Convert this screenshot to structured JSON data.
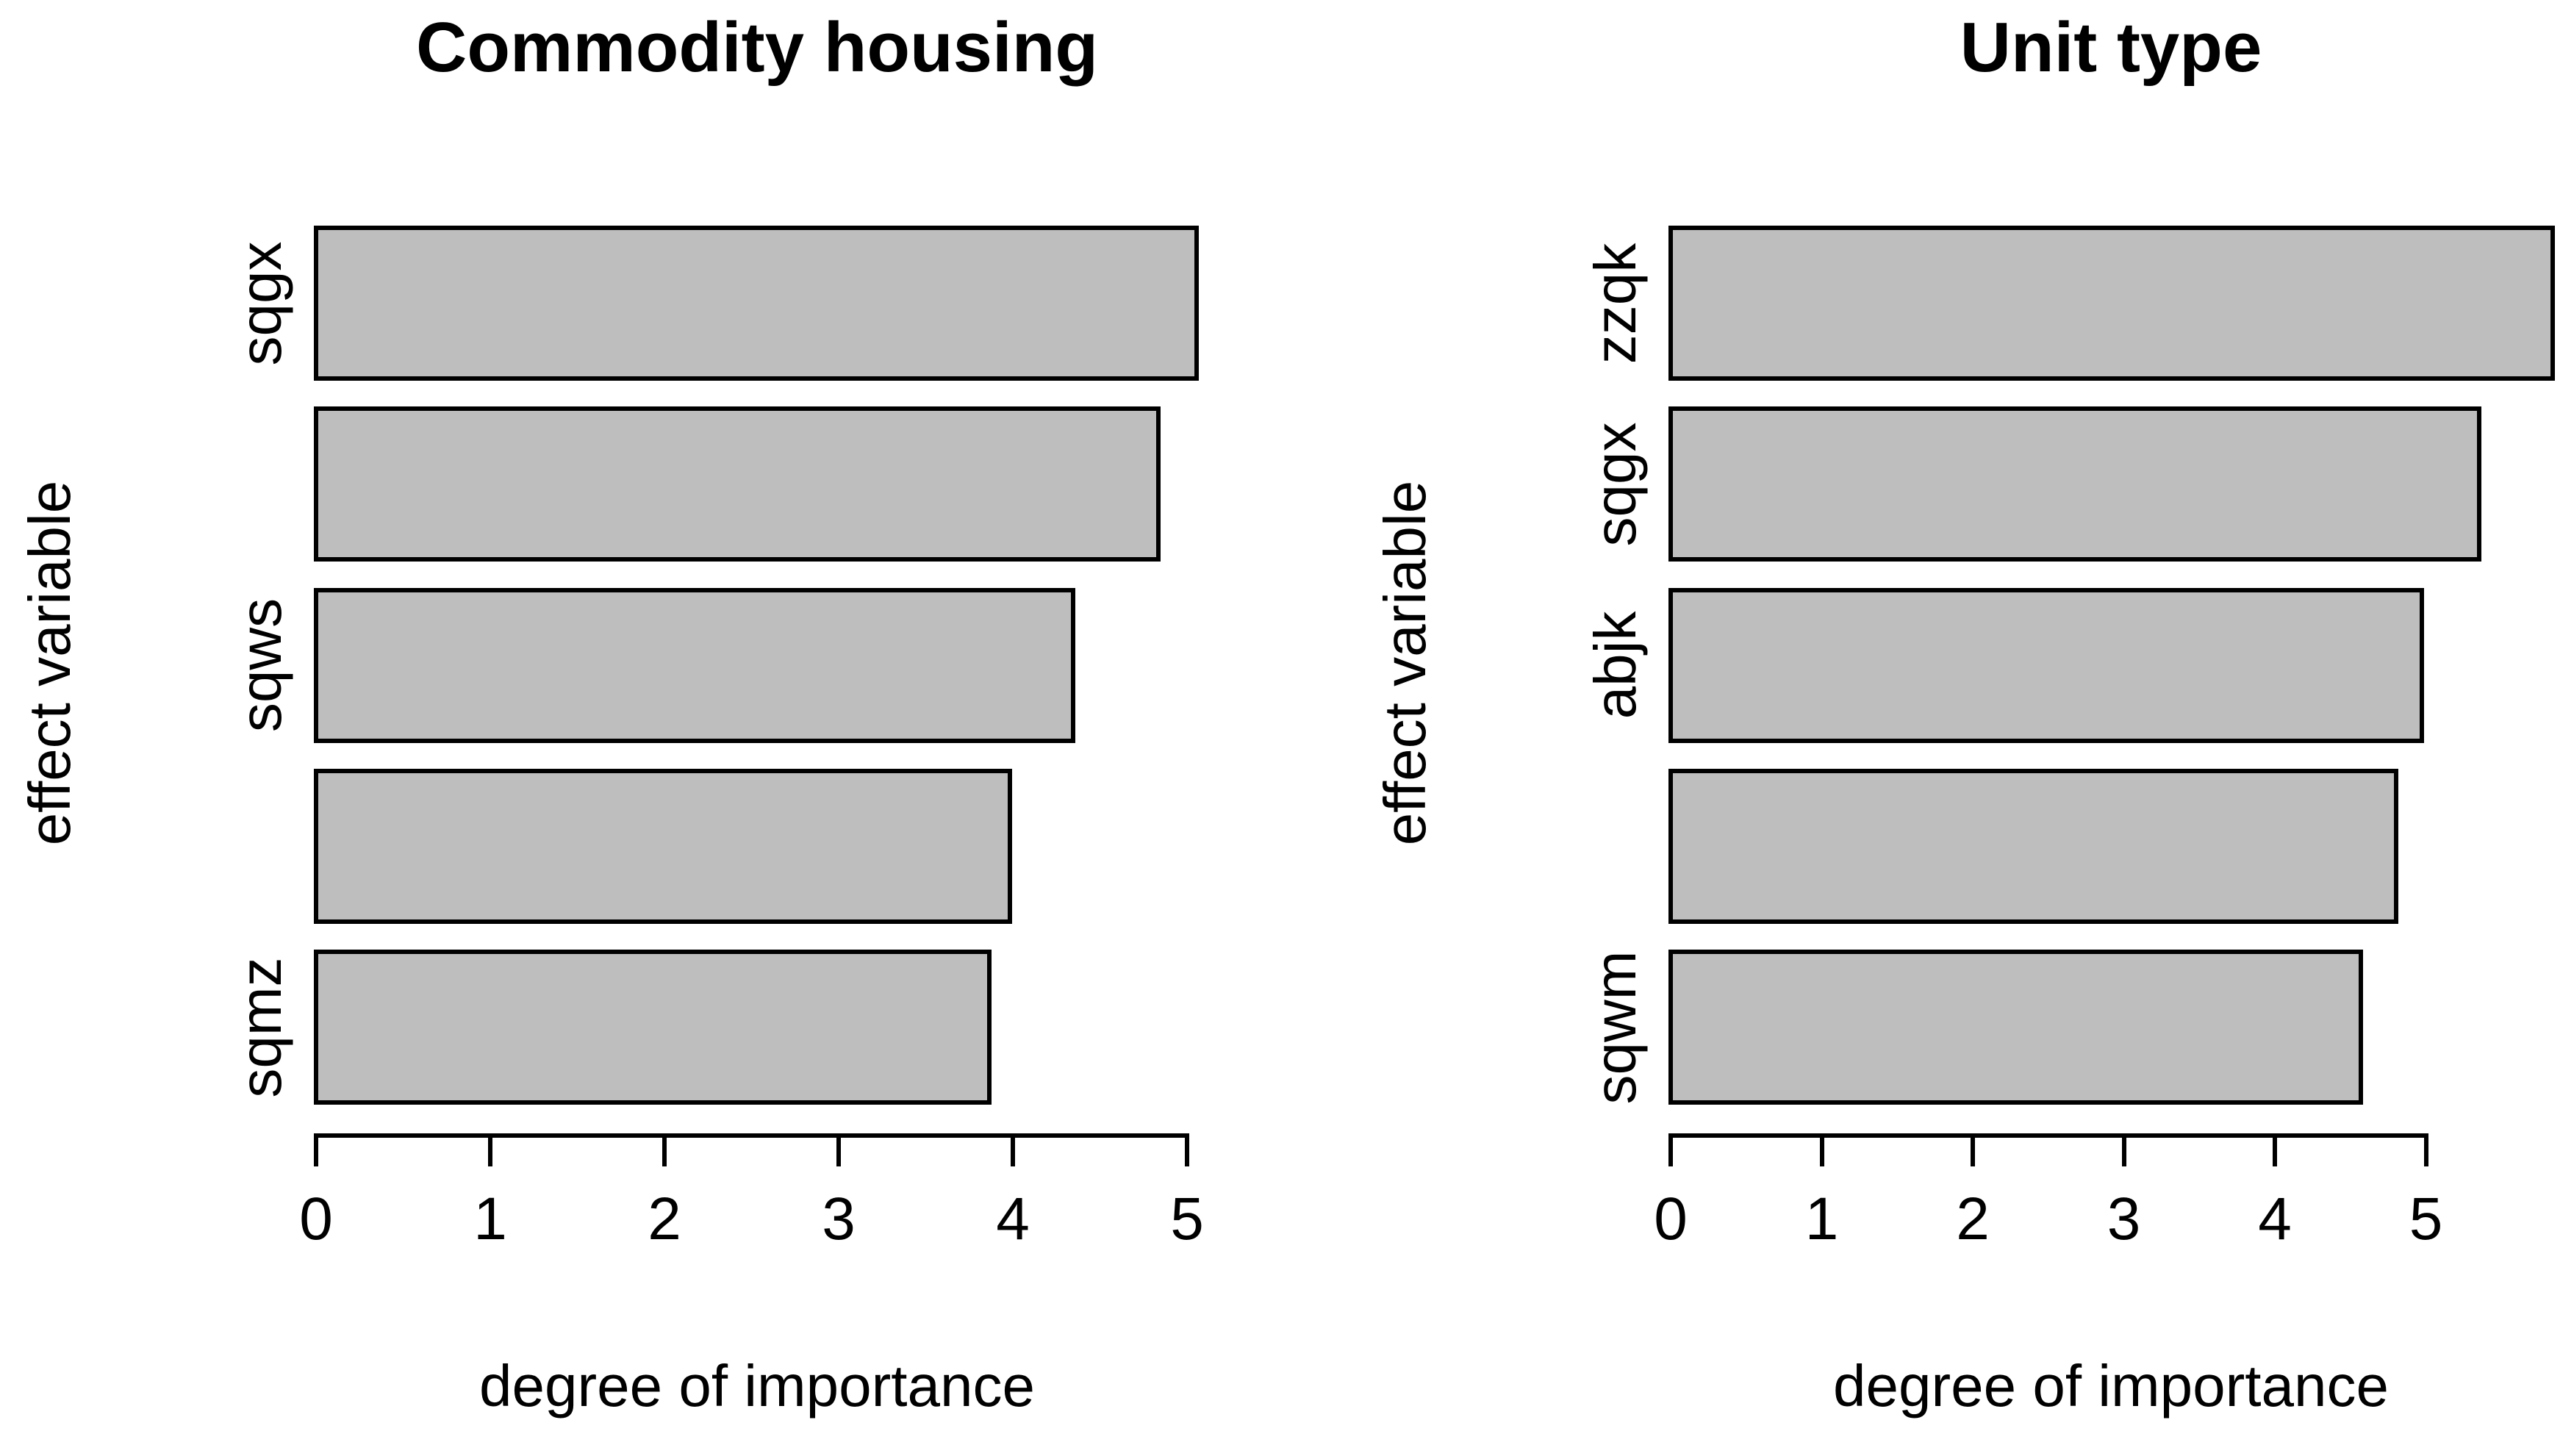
{
  "figure": {
    "background_color": "#ffffff",
    "bar_fill_color": "#bebebe",
    "bar_border_color": "#000000",
    "text_color": "#000000"
  },
  "chart_data": [
    {
      "type": "bar",
      "orientation": "horizontal",
      "title": "Commodity housing",
      "xlabel": "degree of importance",
      "ylabel": "effect variable",
      "categories": [
        "sqgx",
        "",
        "sqws",
        "",
        "sqmz"
      ],
      "values": [
        5.08,
        4.86,
        4.37,
        4.01,
        3.89
      ],
      "xticks": [
        0,
        1,
        2,
        3,
        4,
        5
      ],
      "xlim": [
        0,
        5.08
      ],
      "grid": false,
      "legend": "none"
    },
    {
      "type": "bar",
      "orientation": "horizontal",
      "title": "Unit type",
      "xlabel": "degree of importance",
      "ylabel": "effect variable",
      "categories": [
        "zzqk",
        "sqgx",
        "abjk",
        "",
        "sqwm"
      ],
      "values": [
        5.87,
        5.38,
        5.0,
        4.83,
        4.6
      ],
      "xticks": [
        0,
        1,
        2,
        3,
        4,
        5
      ],
      "xlim": [
        0,
        5.87
      ],
      "grid": false,
      "legend": "none"
    }
  ]
}
